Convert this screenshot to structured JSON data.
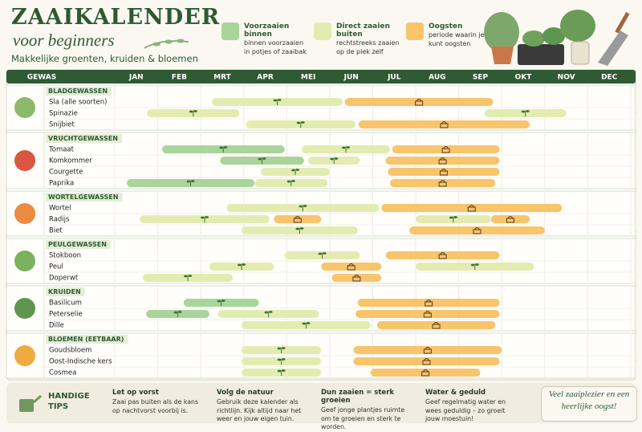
{
  "header": {
    "title": "ZAAIKALENDER",
    "subtitle": "voor beginners",
    "tagline": "Makkelijke groenten, kruiden & bloemen"
  },
  "legend": [
    {
      "title": "Voorzaaien binnen",
      "text": "binnen voorzaaien in potjes of zaaibak",
      "color": "#a9d49b"
    },
    {
      "title": "Direct zaaien buiten",
      "text": "rechtstreeks zaaien op de plek zelf",
      "color": "#e3ecb0"
    },
    {
      "title": "Oogsten",
      "text": "periode waarin je kunt oogsten",
      "color": "#f8c46c"
    }
  ],
  "chart_data": {
    "type": "gantt",
    "column_label": "GEWAS",
    "categories": [
      "JAN",
      "FEB",
      "MRT",
      "APR",
      "MEI",
      "JUN",
      "JUL",
      "AUG",
      "SEP",
      "OKT",
      "NOV",
      "DEC"
    ],
    "xlim": [
      0,
      12
    ],
    "groups": [
      {
        "name": "BLADGEWASSEN",
        "rows": [
          {
            "name": "Sla (alle soorten)",
            "bars": [
              {
                "color": "#e3ecb0",
                "start": 2.26,
                "end": 5.3
              },
              {
                "color": "#f8c46c",
                "start": 5.35,
                "end": 8.8
              }
            ]
          },
          {
            "name": "Spinazie",
            "bars": [
              {
                "color": "#e3ecb0",
                "start": 0.75,
                "end": 2.9
              },
              {
                "color": "#e3ecb0",
                "start": 8.6,
                "end": 10.5
              }
            ]
          },
          {
            "name": "Snijbiet",
            "bars": [
              {
                "color": "#e3ecb0",
                "start": 3.05,
                "end": 5.6
              },
              {
                "color": "#f8c46c",
                "start": 5.67,
                "end": 9.65
              }
            ]
          }
        ]
      },
      {
        "name": "VRUCHTGEWASSEN",
        "rows": [
          {
            "name": "Tomaat",
            "bars": [
              {
                "color": "#a9d49b",
                "start": 1.1,
                "end": 3.95
              },
              {
                "color": "#e3ecb0",
                "start": 4.35,
                "end": 6.4
              },
              {
                "color": "#f8c46c",
                "start": 6.45,
                "end": 8.95
              }
            ]
          },
          {
            "name": "Komkommer",
            "bars": [
              {
                "color": "#a9d49b",
                "start": 2.45,
                "end": 4.4
              },
              {
                "color": "#e3ecb0",
                "start": 4.5,
                "end": 5.7
              },
              {
                "color": "#f8c46c",
                "start": 6.3,
                "end": 8.95
              }
            ]
          },
          {
            "name": "Courgette",
            "bars": [
              {
                "color": "#e3ecb0",
                "start": 3.4,
                "end": 5
              },
              {
                "color": "#f8c46c",
                "start": 6.35,
                "end": 8.95
              }
            ]
          },
          {
            "name": "Paprika",
            "bars": [
              {
                "color": "#a9d49b",
                "start": 0.28,
                "end": 3.25
              },
              {
                "color": "#e3ecb0",
                "start": 3.25,
                "end": 4.95
              },
              {
                "color": "#f8c46c",
                "start": 6.4,
                "end": 8.85
              }
            ]
          }
        ]
      },
      {
        "name": "WORTELGEWASSEN",
        "rows": [
          {
            "name": "Wortel",
            "bars": [
              {
                "color": "#e3ecb0",
                "start": 2.6,
                "end": 6.15
              },
              {
                "color": "#f8c46c",
                "start": 6.2,
                "end": 10.4
              }
            ]
          },
          {
            "name": "Radijs",
            "bars": [
              {
                "color": "#e3ecb0",
                "start": 0.58,
                "end": 3.6
              },
              {
                "color": "#f8c46c",
                "start": 3.7,
                "end": 4.8
              },
              {
                "color": "#e3ecb0",
                "start": 7,
                "end": 8.75
              },
              {
                "color": "#f8c46c",
                "start": 8.75,
                "end": 9.65
              }
            ]
          },
          {
            "name": "Biet",
            "bars": [
              {
                "color": "#e3ecb0",
                "start": 2.95,
                "end": 5.65
              },
              {
                "color": "#f8c46c",
                "start": 6.85,
                "end": 10
              }
            ]
          }
        ]
      },
      {
        "name": "PEULGEWASSEN",
        "rows": [
          {
            "name": "Stokboon",
            "bars": [
              {
                "color": "#e3ecb0",
                "start": 3.95,
                "end": 5.7
              },
              {
                "color": "#f8c46c",
                "start": 6.3,
                "end": 8.95
              }
            ]
          },
          {
            "name": "Peul",
            "bars": [
              {
                "color": "#e3ecb0",
                "start": 2.2,
                "end": 3.7
              },
              {
                "color": "#f8c46c",
                "start": 4.8,
                "end": 6.2
              },
              {
                "color": "#e3ecb0",
                "start": 7,
                "end": 9.75
              }
            ]
          },
          {
            "name": "Doperwt",
            "bars": [
              {
                "color": "#e3ecb0",
                "start": 0.65,
                "end": 2.75
              },
              {
                "color": "#f8c46c",
                "start": 5.05,
                "end": 6.2
              }
            ]
          }
        ]
      },
      {
        "name": "KRUIDEN",
        "rows": [
          {
            "name": "Basilicum",
            "bars": [
              {
                "color": "#a9d49b",
                "start": 1.6,
                "end": 3.35
              },
              {
                "color": "#f8c46c",
                "start": 5.65,
                "end": 8.95
              }
            ]
          },
          {
            "name": "Peterselie",
            "bars": [
              {
                "color": "#a9d49b",
                "start": 0.73,
                "end": 2.2
              },
              {
                "color": "#e3ecb0",
                "start": 2.4,
                "end": 4.75
              },
              {
                "color": "#f8c46c",
                "start": 5.6,
                "end": 8.95
              }
            ]
          },
          {
            "name": "Dille",
            "bars": [
              {
                "color": "#e3ecb0",
                "start": 2.95,
                "end": 5.95
              },
              {
                "color": "#f8c46c",
                "start": 6.1,
                "end": 8.85
              }
            ]
          }
        ]
      },
      {
        "name": "BLOEMEN (EETBAAR)",
        "rows": [
          {
            "name": "Goudsbloem",
            "bars": [
              {
                "color": "#e3ecb0",
                "start": 2.95,
                "end": 4.8
              },
              {
                "color": "#f8c46c",
                "start": 5.55,
                "end": 9
              }
            ]
          },
          {
            "name": "Oost-Indische kers",
            "bars": [
              {
                "color": "#e3ecb0",
                "start": 2.95,
                "end": 4.8
              },
              {
                "color": "#f8c46c",
                "start": 5.55,
                "end": 8.95
              }
            ]
          },
          {
            "name": "Cosmea",
            "bars": [
              {
                "color": "#e3ecb0",
                "start": 2.95,
                "end": 4.8
              },
              {
                "color": "#f8c46c",
                "start": 5.95,
                "end": 8.5
              }
            ]
          }
        ]
      }
    ]
  },
  "tips": {
    "title": "HANDIGE TIPS",
    "items": [
      {
        "title": "Let op vorst",
        "text": "Zaai pas buiten als de kans op nachtvorst voorbij is."
      },
      {
        "title": "Volg de natuur",
        "text": "Gebruik deze kalender als richtlijn. Kijk altijd naar het weer en jouw eigen tuin."
      },
      {
        "title": "Dun zaaien = sterk groeien",
        "text": "Geef jonge plantjes ruimte om te groeien en sterk te worden."
      },
      {
        "title": "Water & geduld",
        "text": "Geef regelmatig water en wees geduldig – zo groeit jouw moestuin!"
      }
    ],
    "closing": "Veel zaaiplezier en een heerlijke oogst!"
  }
}
